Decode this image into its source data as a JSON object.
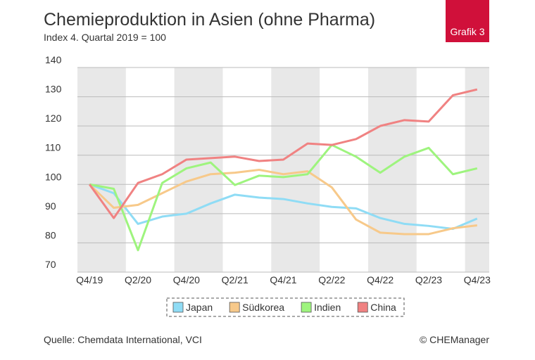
{
  "chart_data": {
    "type": "line",
    "title": "Chemieproduktion in Asien (ohne Pharma)",
    "subtitle": "Index 4. Quartal 2019 = 100",
    "badge": "Grafik 3",
    "source": "Quelle: Chemdata International, VCI",
    "credit": "© CHEManager",
    "categories": [
      "Q4/19",
      null,
      "Q2/20",
      null,
      "Q4/20",
      null,
      "Q2/21",
      null,
      "Q4/21",
      null,
      "Q2/22",
      null,
      "Q4/22",
      null,
      "Q2/23",
      null,
      "Q4/23"
    ],
    "series": [
      {
        "name": "Japan",
        "color": "#8fdcf5",
        "values": [
          100,
          97,
          86.5,
          89,
          90,
          93.5,
          96.5,
          95.5,
          95,
          93.5,
          92.3,
          91.8,
          88.5,
          86.5,
          85.8,
          84.8,
          88.3
        ]
      },
      {
        "name": "Südkorea",
        "color": "#f7c98a",
        "values": [
          100,
          92,
          93,
          97,
          101,
          103.5,
          104,
          105,
          103.5,
          104.5,
          99,
          88,
          83.5,
          83,
          83,
          85,
          86
        ]
      },
      {
        "name": "Indien",
        "color": "#9ef47e",
        "values": [
          100,
          98.5,
          77.5,
          100.5,
          105.5,
          107.5,
          99.8,
          103,
          102.5,
          103.5,
          113.5,
          109.5,
          104,
          109.5,
          112.5,
          103.5,
          105.5
        ]
      },
      {
        "name": "China",
        "color": "#f08282",
        "values": [
          100,
          88.5,
          100.5,
          103.5,
          108.5,
          109,
          109.5,
          108,
          108.5,
          114,
          113.5,
          115.5,
          120,
          122,
          121.5,
          130.5,
          132.5
        ]
      }
    ],
    "ylim": [
      70,
      140
    ],
    "yticks": [
      70,
      80,
      90,
      100,
      110,
      120,
      130,
      140
    ],
    "grid": true
  }
}
